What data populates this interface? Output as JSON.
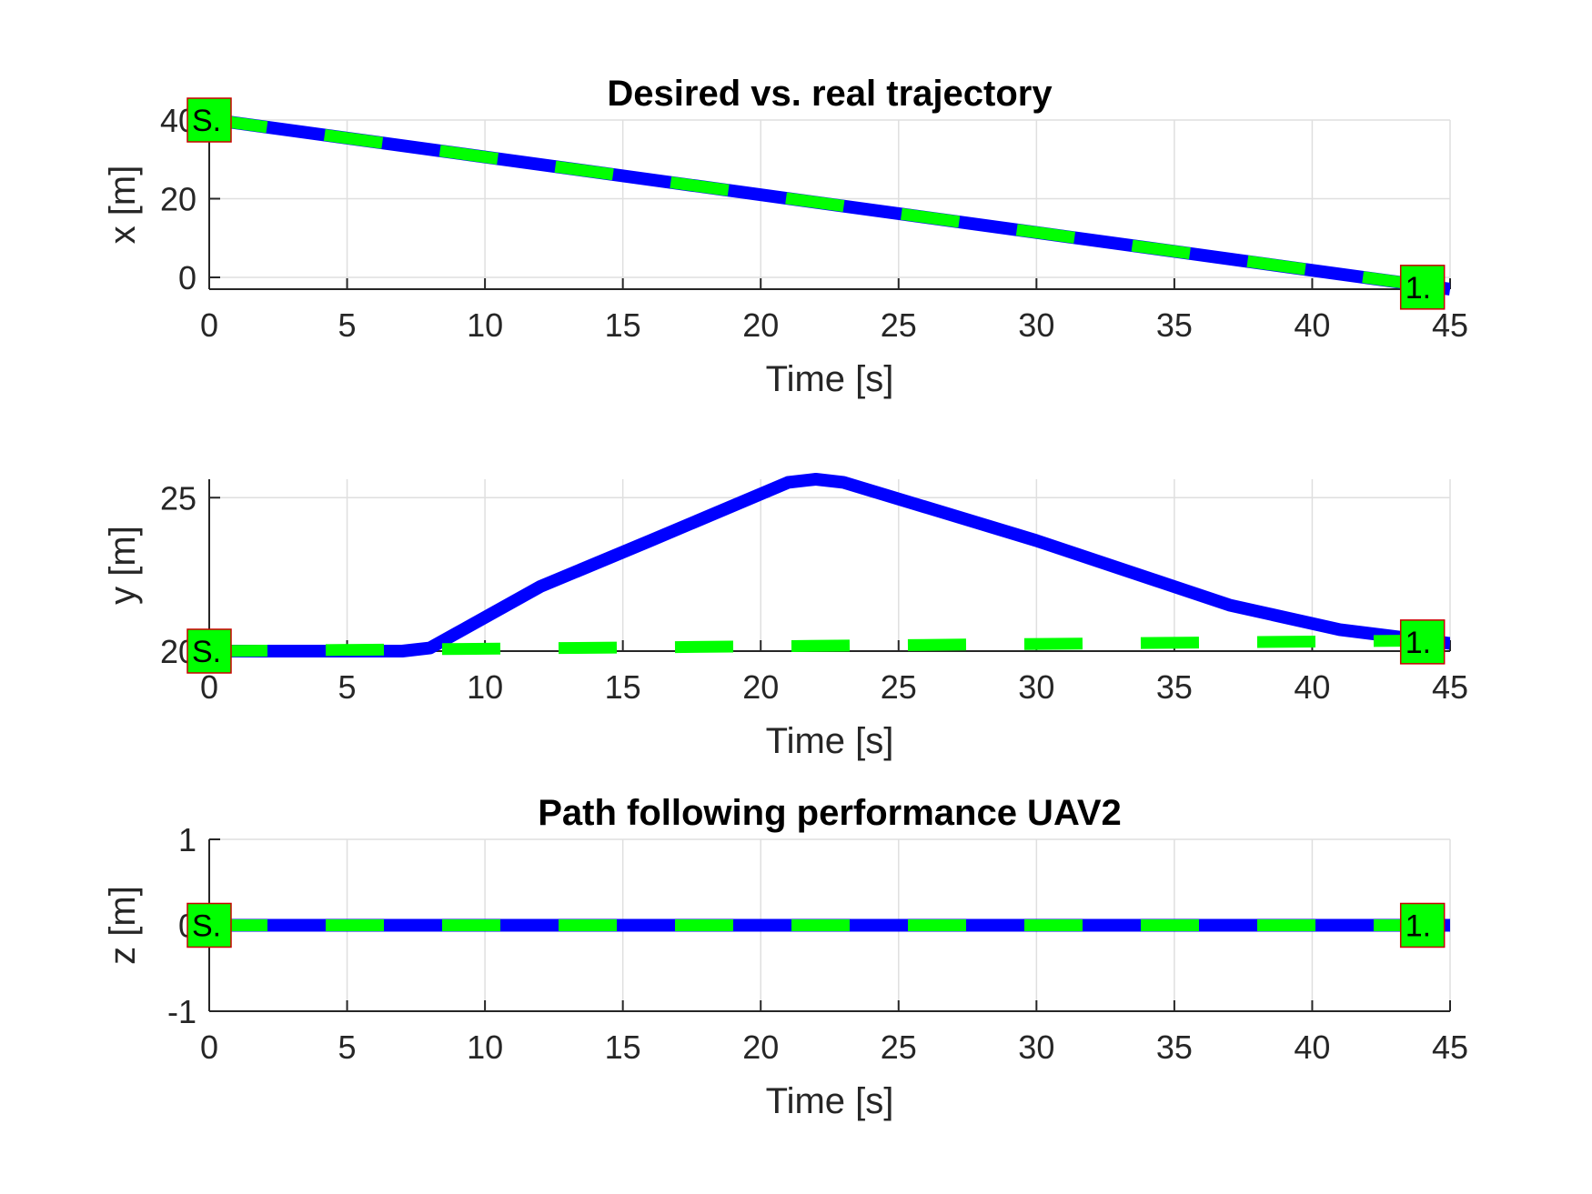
{
  "figure": {
    "grid": true,
    "colors": {
      "real": "#0000ff",
      "desired": "#00ff00",
      "grid": "#dfdfdf",
      "axis": "#262626",
      "marker_fill": "#00ff00",
      "marker_edge": "#cc0000"
    }
  },
  "chart_data": [
    {
      "type": "line",
      "title": "Desired vs. real trajectory",
      "xlabel": "Time [s]",
      "ylabel": "x [m]",
      "xlim": [
        0,
        45
      ],
      "ylim": [
        -3,
        40
      ],
      "xticks": [
        "0",
        "5",
        "10",
        "15",
        "20",
        "25",
        "30",
        "35",
        "40",
        "45"
      ],
      "yticks": [
        "0",
        "20",
        "40"
      ],
      "ytick_values": [
        0,
        20,
        40
      ],
      "series": [
        {
          "style": "solid",
          "color": "#0000ff",
          "x": [
            0,
            45
          ],
          "y": [
            40.2,
            -3
          ]
        },
        {
          "style": "dashed",
          "color": "#00ff00",
          "x": [
            0,
            44
          ],
          "y": [
            40.2,
            -2
          ]
        }
      ],
      "markers": [
        {
          "label": "S.",
          "x": 0,
          "y": 40
        },
        {
          "label": "1.",
          "x": 44,
          "y": -2.5
        }
      ]
    },
    {
      "type": "line",
      "title": "",
      "xlabel": "Time [s]",
      "ylabel": "y [m]",
      "xlim": [
        0,
        45
      ],
      "ylim": [
        20,
        25.6
      ],
      "xticks": [
        "0",
        "5",
        "10",
        "15",
        "20",
        "25",
        "30",
        "35",
        "40",
        "45"
      ],
      "yticks": [
        "20",
        "25"
      ],
      "ytick_values": [
        20,
        25
      ],
      "series": [
        {
          "style": "solid",
          "color": "#0000ff",
          "x": [
            0,
            7,
            8,
            9,
            12,
            16,
            21,
            22,
            23,
            30,
            37,
            41,
            45
          ],
          "y": [
            20.0,
            20.0,
            20.1,
            20.6,
            22.1,
            23.6,
            25.5,
            25.6,
            25.5,
            23.6,
            21.5,
            20.7,
            20.25
          ]
        },
        {
          "style": "dashed",
          "color": "#00ff00",
          "x": [
            0,
            45
          ],
          "y": [
            20.0,
            20.35
          ]
        }
      ],
      "markers": [
        {
          "label": "S.",
          "x": 0,
          "y": 20
        },
        {
          "label": "1.",
          "x": 44,
          "y": 20.3
        }
      ]
    },
    {
      "type": "line",
      "title": "Path following performance  UAV2",
      "xlabel": "Time [s]",
      "ylabel": "z [m]",
      "xlim": [
        0,
        45
      ],
      "ylim": [
        -1,
        1
      ],
      "xticks": [
        "0",
        "5",
        "10",
        "15",
        "20",
        "25",
        "30",
        "35",
        "40",
        "45"
      ],
      "yticks": [
        "-1",
        "0",
        "1"
      ],
      "ytick_values": [
        -1,
        0,
        1
      ],
      "series": [
        {
          "style": "solid",
          "color": "#0000ff",
          "x": [
            0,
            45
          ],
          "y": [
            0,
            0
          ]
        },
        {
          "style": "dashed",
          "color": "#00ff00",
          "x": [
            0,
            45
          ],
          "y": [
            0,
            0
          ]
        }
      ],
      "markers": [
        {
          "label": "S.",
          "x": 0,
          "y": 0
        },
        {
          "label": "1.",
          "x": 44,
          "y": 0
        }
      ]
    }
  ]
}
